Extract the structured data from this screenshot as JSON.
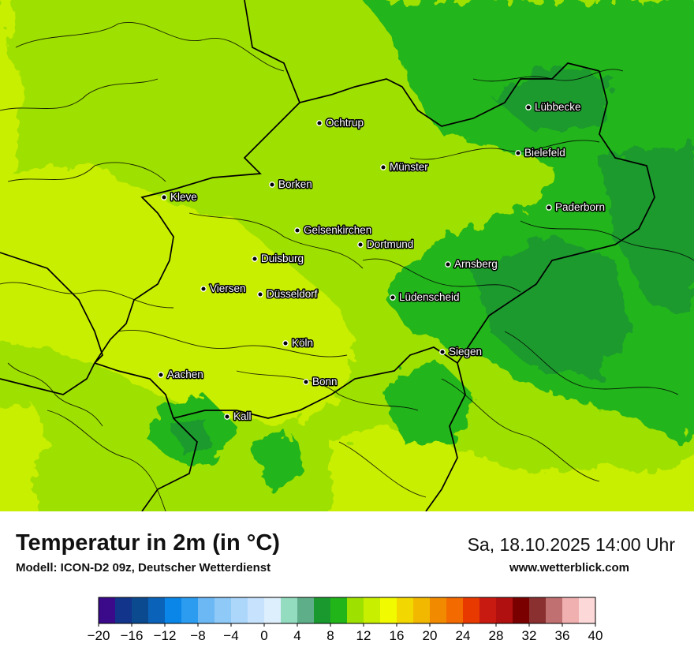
{
  "title": "Temperatur in 2m (in °C)",
  "subtitle": "Modell: ICON-D2 09z, Deutscher Wetterdienst",
  "datetime": "Sa, 18.10.2025 14:00 Uhr",
  "site": "www.wetterblick.com",
  "cities": [
    {
      "id": "luebbecke",
      "name": "Lübbecke"
    },
    {
      "id": "ochtrup",
      "name": "Ochtrup"
    },
    {
      "id": "bielefeld",
      "name": "Bielefeld"
    },
    {
      "id": "muenster",
      "name": "Münster"
    },
    {
      "id": "borken",
      "name": "Borken"
    },
    {
      "id": "kleve",
      "name": "Kleve"
    },
    {
      "id": "paderborn",
      "name": "Paderborn"
    },
    {
      "id": "gelsenkirchen",
      "name": "Gelsenkirchen"
    },
    {
      "id": "dortmund",
      "name": "Dortmund"
    },
    {
      "id": "duisburg",
      "name": "Duisburg"
    },
    {
      "id": "arnsberg",
      "name": "Arnsberg"
    },
    {
      "id": "viersen",
      "name": "Viersen"
    },
    {
      "id": "duesseldorf",
      "name": "Düsseldorf"
    },
    {
      "id": "luedenscheid",
      "name": "Lüdenscheid"
    },
    {
      "id": "koeln",
      "name": "Köln"
    },
    {
      "id": "siegen",
      "name": "Siegen"
    },
    {
      "id": "aachen",
      "name": "Aachen"
    },
    {
      "id": "bonn",
      "name": "Bonn"
    },
    {
      "id": "kall",
      "name": "Kall"
    }
  ],
  "legend": {
    "colors": [
      "#3a0a8a",
      "#12348a",
      "#0b4a8e",
      "#0a63b8",
      "#0a86e8",
      "#2c9cf0",
      "#6cb8f5",
      "#8ec9f7",
      "#acd6fa",
      "#c6e2fc",
      "#ddeefc",
      "#94dcc0",
      "#5fae8a",
      "#1a9a2e",
      "#22b51a",
      "#9ee000",
      "#c8ee00",
      "#f2fa00",
      "#f2d800",
      "#f2b800",
      "#f28a00",
      "#f26a00",
      "#e83a00",
      "#c81a10",
      "#b01010",
      "#7a0000",
      "#8a3030",
      "#c07070",
      "#f0b0b0",
      "#fcd8d8"
    ],
    "ticks": [
      "−20",
      "−16",
      "−12",
      "−8",
      "−4",
      "0",
      "4",
      "8",
      "12",
      "16",
      "20",
      "24",
      "28",
      "32",
      "36",
      "40"
    ]
  }
}
